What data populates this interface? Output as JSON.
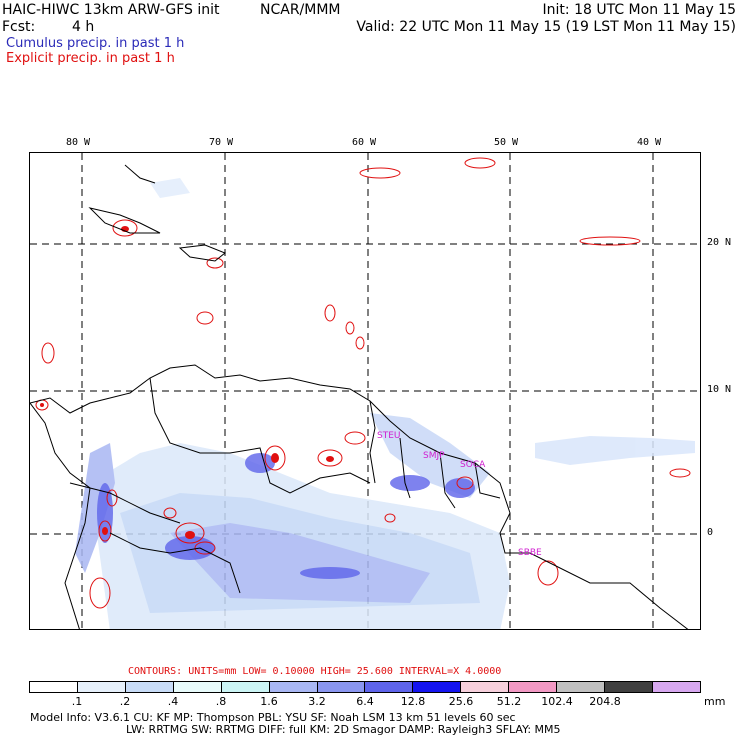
{
  "header": {
    "model_title": "HAIC-HIWC 13km ARW-GFS init",
    "org": "NCAR/MMM",
    "init": "Init: 18 UTC Mon 11 May 15",
    "fcst_label": "Fcst:",
    "fcst_value": "4 h",
    "valid": "Valid: 22 UTC Mon 11 May 15 (19 LST Mon 11 May 15)",
    "cumulus_label": "Cumulus precip. in past 1 h",
    "explicit_label": "Explicit precip. in past 1 h"
  },
  "map": {
    "lon_labels": [
      "80 W",
      "70 W",
      "60 W",
      "50 W",
      "40 W"
    ],
    "lat_labels": [
      "20 N",
      "10 N",
      "0"
    ],
    "site_labels": [
      "STEU",
      "SMJP",
      "SOCA",
      "SBBE"
    ]
  },
  "contours": {
    "text": "CONTOURS:  UNITS=mm  LOW= 0.10000      HIGH=  25.600      INTERVAL=X  4.0000"
  },
  "colorbar": {
    "colors": [
      "#ffffff",
      "#e6f0fb",
      "#c8dcf7",
      "#e8fbfb",
      "#ccf5f5",
      "#a9b7f3",
      "#8a96ef",
      "#5e64ea",
      "#1414f0",
      "#f6d0dc",
      "#f299c4",
      "#c0c0c0",
      "#404040",
      "#d7a8f0"
    ],
    "tick_labels": [
      ".1",
      ".2",
      ".4",
      ".8",
      "1.6",
      "3.2",
      "6.4",
      "12.8",
      "25.6",
      "51.2",
      "102.4",
      "204.8"
    ],
    "units": "mm"
  },
  "model_info": {
    "line1": "Model Info: V3.6.1    CU: KF     MP: Thompson     PBL: YSU     SF: Noah LSM     13 km    51 levels   60 sec",
    "line2": "LW: RRTMG    SW: RRTMG   DIFF: full    KM: 2D Smagor DAMP: Rayleigh3   SFLAY: MM5"
  }
}
